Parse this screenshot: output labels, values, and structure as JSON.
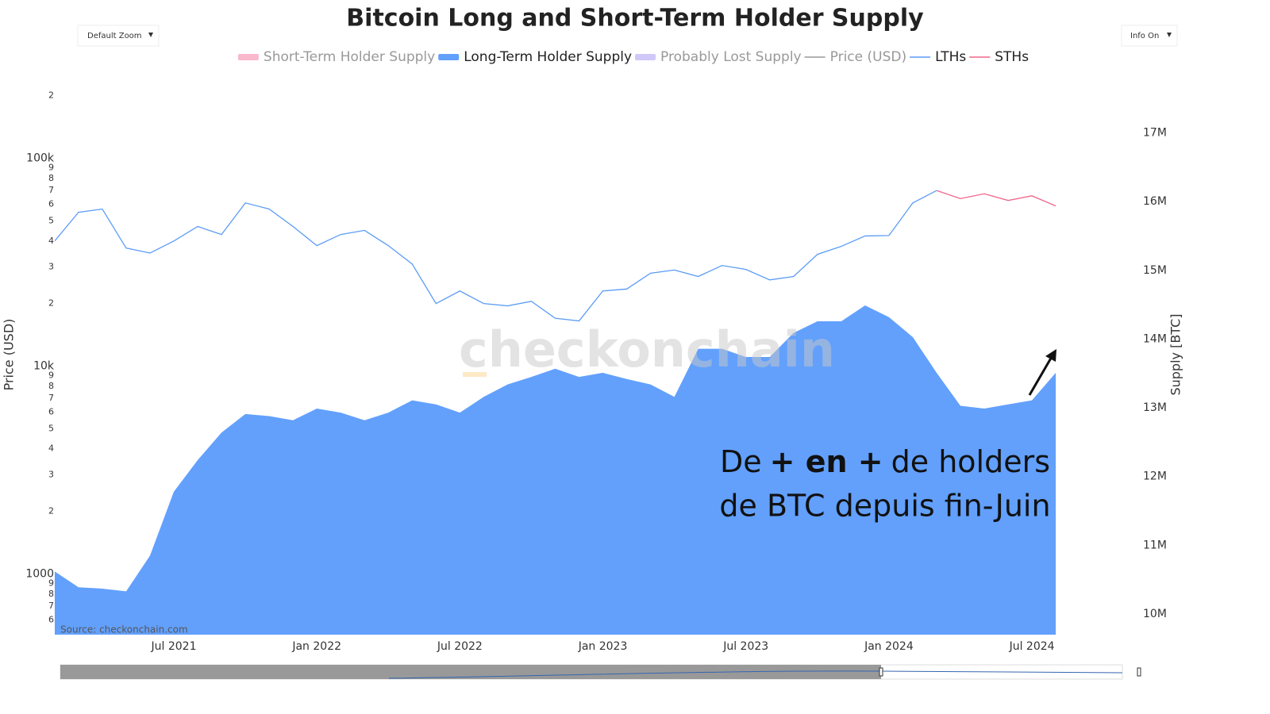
{
  "chart_data": {
    "type": "combo",
    "title": "Bitcoin Long and Short-Term Holder Supply",
    "controls": {
      "zoom": "Default Zoom",
      "info": "Info On"
    },
    "y_label": "Price (USD)",
    "y2_label": "Supply [BTC]",
    "source": "Source: checkonchain.com",
    "watermark": "checkonchain",
    "annotation": {
      "line1": [
        "De",
        "+ en +",
        "de holders"
      ],
      "line2": "de BTC depuis fin-Juin"
    },
    "log_y": true,
    "xlim": [
      "2021-02",
      "2024-09"
    ],
    "xticks": [
      {
        "value": "2021-07",
        "label": "Jul 2021"
      },
      {
        "value": "2022-01",
        "label": "Jan 2022"
      },
      {
        "value": "2022-07",
        "label": "Jul 2022"
      },
      {
        "value": "2023-01",
        "label": "Jan 2023"
      },
      {
        "value": "2023-07",
        "label": "Jul 2023"
      },
      {
        "value": "2024-01",
        "label": "Jan 2024"
      },
      {
        "value": "2024-07",
        "label": "Jul 2024"
      }
    ],
    "ylim": [
      510,
      240000
    ],
    "yticks": [
      {
        "value": 600,
        "label": "6"
      },
      {
        "value": 700,
        "label": "7"
      },
      {
        "value": 800,
        "label": "8"
      },
      {
        "value": 900,
        "label": "9"
      },
      1000,
      {
        "value": 2000,
        "label": "2"
      },
      {
        "value": 3000,
        "label": "3"
      },
      {
        "value": 4000,
        "label": "4"
      },
      {
        "value": 5000,
        "label": "5"
      },
      {
        "value": 6000,
        "label": "6"
      },
      {
        "value": 7000,
        "label": "7"
      },
      {
        "value": 8000,
        "label": "8"
      },
      {
        "value": 9000,
        "label": "9"
      },
      {
        "value": 10000,
        "label": "10k"
      },
      {
        "value": 20000,
        "label": "2"
      },
      {
        "value": 30000,
        "label": "3"
      },
      {
        "value": 40000,
        "label": "4"
      },
      {
        "value": 50000,
        "label": "5"
      },
      {
        "value": 60000,
        "label": "6"
      },
      {
        "value": 70000,
        "label": "7"
      },
      {
        "value": 80000,
        "label": "8"
      },
      {
        "value": 90000,
        "label": "9"
      },
      {
        "value": 100000,
        "label": "100k"
      },
      {
        "value": 200000,
        "label": "2"
      }
    ],
    "y2lim": [
      9700000,
      17780000
    ],
    "y2ticks": [
      {
        "value": 10000000,
        "label": "10M"
      },
      {
        "value": 11000000,
        "label": "11M"
      },
      {
        "value": 12000000,
        "label": "12M"
      },
      {
        "value": 13000000,
        "label": "13M"
      },
      {
        "value": 14000000,
        "label": "14M"
      },
      {
        "value": 15000000,
        "label": "15M"
      },
      {
        "value": 16000000,
        "label": "16M"
      },
      {
        "value": 17000000,
        "label": "17M"
      }
    ],
    "x": [
      "2021-02",
      "2021-03",
      "2021-04",
      "2021-05",
      "2021-06",
      "2021-07",
      "2021-08",
      "2021-09",
      "2021-10",
      "2021-11",
      "2021-12",
      "2022-01",
      "2022-02",
      "2022-03",
      "2022-04",
      "2022-05",
      "2022-06",
      "2022-07",
      "2022-08",
      "2022-09",
      "2022-10",
      "2022-11",
      "2022-12",
      "2023-01",
      "2023-02",
      "2023-03",
      "2023-04",
      "2023-05",
      "2023-06",
      "2023-07",
      "2023-08",
      "2023-09",
      "2023-10",
      "2023-11",
      "2023-12",
      "2024-01",
      "2024-02",
      "2024-03",
      "2024-04",
      "2024-05",
      "2024-06",
      "2024-07",
      "2024-08"
    ],
    "series": [
      {
        "name": "Short-Term Holder Supply",
        "color": "#f9b8cb",
        "type": "area",
        "visible": false
      },
      {
        "name": "Long-Term Holder Supply",
        "color": "#62a0fc",
        "type": "area",
        "axis": "y2",
        "visible": true,
        "values": [
          10620000,
          10390000,
          10370000,
          10330000,
          10850000,
          11780000,
          12240000,
          12640000,
          12910000,
          12880000,
          12820000,
          12990000,
          12930000,
          12820000,
          12930000,
          13110000,
          13050000,
          12930000,
          13160000,
          13340000,
          13450000,
          13570000,
          13450000,
          13510000,
          13420000,
          13340000,
          13160000,
          13860000,
          13860000,
          13740000,
          13740000,
          14090000,
          14260000,
          14260000,
          14490000,
          14320000,
          14030000,
          13510000,
          13030000,
          12990000,
          13050000,
          13110000,
          13510000
        ]
      },
      {
        "name": "Probably Lost Supply",
        "color": "#cfc8f8",
        "type": "area",
        "visible": false
      },
      {
        "name": "Price (USD)",
        "color": "#999999",
        "type": "line",
        "visible": false
      },
      {
        "name": "LTHs",
        "color": "#5b9cf6",
        "type": "line",
        "visible": true,
        "values": [
          40000,
          55000,
          57000,
          37000,
          35000,
          40000,
          47000,
          43000,
          61000,
          57000,
          47000,
          38000,
          43000,
          45000,
          38000,
          31000,
          20000,
          23000,
          20000,
          19500,
          20500,
          17000,
          16500,
          23000,
          23500,
          28000,
          29000,
          27000,
          30500,
          29200,
          26000,
          27000,
          34500,
          37700,
          42300,
          42500,
          61000,
          70000,
          null,
          null,
          null,
          null,
          null
        ]
      },
      {
        "name": "STHs",
        "color": "#f0668a",
        "type": "line",
        "visible": true,
        "values": [
          null,
          null,
          null,
          null,
          null,
          null,
          null,
          null,
          null,
          null,
          null,
          null,
          null,
          null,
          null,
          null,
          null,
          null,
          null,
          null,
          null,
          null,
          null,
          null,
          null,
          null,
          null,
          null,
          null,
          null,
          null,
          null,
          null,
          null,
          null,
          null,
          null,
          70000,
          64000,
          67500,
          62700,
          66000,
          59000
        ]
      }
    ]
  }
}
